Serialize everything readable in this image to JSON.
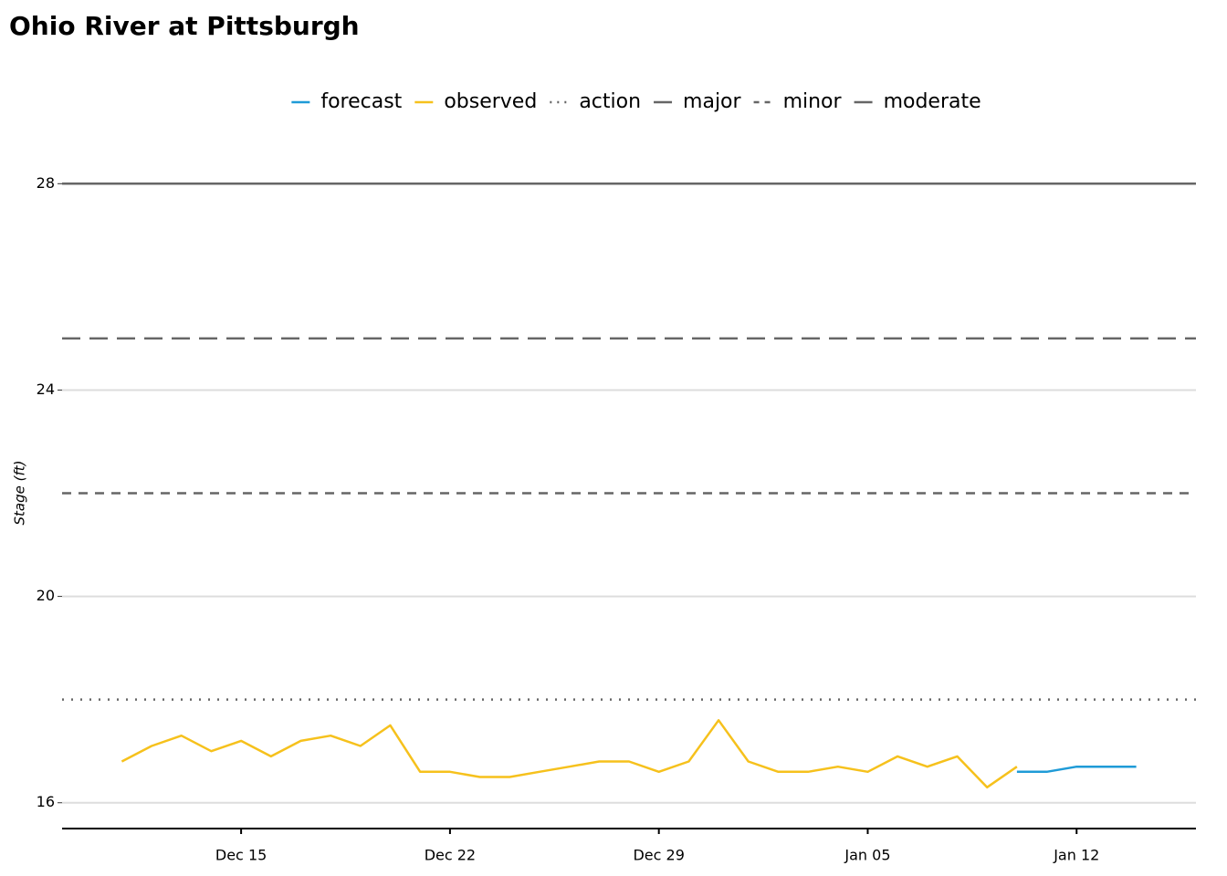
{
  "chart_data": {
    "type": "line",
    "title": "Ohio River at Pittsburgh",
    "y_label": "Stage (ft)",
    "x": [
      "Dec 11",
      "Dec 12",
      "Dec 13",
      "Dec 14",
      "Dec 15",
      "Dec 16",
      "Dec 17",
      "Dec 18",
      "Dec 19",
      "Dec 20",
      "Dec 21",
      "Dec 22",
      "Dec 23",
      "Dec 24",
      "Dec 25",
      "Dec 26",
      "Dec 27",
      "Dec 28",
      "Dec 29",
      "Dec 30",
      "Dec 31",
      "Jan 01",
      "Jan 02",
      "Jan 03",
      "Jan 04",
      "Jan 05",
      "Jan 06",
      "Jan 07",
      "Jan 08",
      "Jan 09",
      "Jan 10",
      "Jan 11",
      "Jan 12",
      "Jan 13",
      "Jan 14"
    ],
    "series": [
      {
        "name": "forecast",
        "color": "#1f9bd7",
        "values": [
          null,
          null,
          null,
          null,
          null,
          null,
          null,
          null,
          null,
          null,
          null,
          null,
          null,
          null,
          null,
          null,
          null,
          null,
          null,
          null,
          null,
          null,
          null,
          null,
          null,
          null,
          null,
          null,
          null,
          null,
          16.6,
          16.6,
          16.7,
          16.7,
          16.7
        ]
      },
      {
        "name": "observed",
        "color": "#f6c11c",
        "values": [
          16.8,
          17.1,
          17.3,
          17.0,
          17.2,
          16.9,
          17.2,
          17.3,
          17.1,
          17.5,
          16.6,
          16.6,
          16.5,
          16.5,
          16.6,
          16.7,
          16.8,
          16.8,
          16.6,
          16.8,
          17.6,
          16.8,
          16.6,
          16.6,
          16.7,
          16.6,
          16.9,
          16.7,
          16.9,
          16.3,
          16.7,
          null,
          null,
          null,
          null
        ]
      }
    ],
    "thresholds": [
      {
        "name": "action",
        "value": 18,
        "dash": "dotted"
      },
      {
        "name": "major",
        "value": 28,
        "dash": "solid"
      },
      {
        "name": "minor",
        "value": 22,
        "dash": "dashed"
      },
      {
        "name": "moderate",
        "value": 25,
        "dash": "longdash"
      }
    ],
    "threshold_color": "#666666",
    "xlim": [
      "Dec 09",
      "Jan 16"
    ],
    "xticks": [
      "Dec 15",
      "Dec 22",
      "Dec 29",
      "Jan 05",
      "Jan 12"
    ],
    "ylim": [
      15.5,
      28.2
    ],
    "yticks": [
      16,
      20,
      24,
      28
    ],
    "grid": true
  }
}
